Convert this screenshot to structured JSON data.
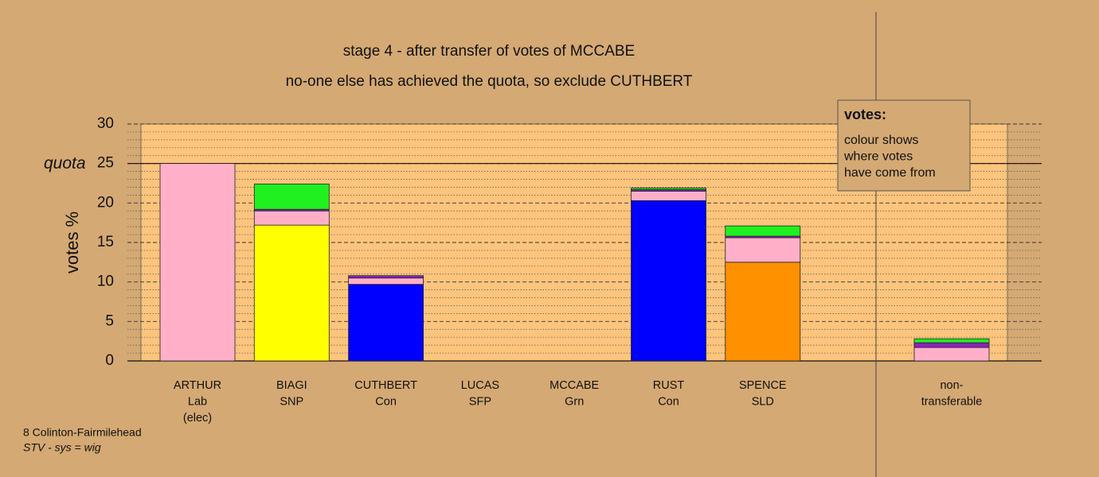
{
  "chart_data": {
    "type": "stacked-bar",
    "title": "stage 4 - after transfer of votes of MCCABE",
    "subtitle": "no-one else has achieved the quota, so exclude CUTHBERT",
    "y_label": "votes %",
    "quota_label": "quota",
    "quota": 25,
    "categories": [
      [
        "ARTHUR",
        "Lab",
        "(elec)"
      ],
      [
        "BIAGI",
        "SNP"
      ],
      [
        "CUTHBERT",
        "Con"
      ],
      [
        "LUCAS",
        "SFP"
      ],
      [
        "MCCABE",
        "Grn"
      ],
      [
        "RUST",
        "Con"
      ],
      [
        "SPENCE",
        "SLD"
      ],
      [
        "non-",
        "transferable"
      ]
    ],
    "series": [
      {
        "color": "#ffff00",
        "values": [
          0,
          17.2,
          0,
          0,
          0,
          0,
          0,
          0
        ]
      },
      {
        "color": "#0000ff",
        "values": [
          0,
          0,
          9.7,
          0,
          0,
          20.3,
          0,
          0
        ]
      },
      {
        "color": "#ff9000",
        "values": [
          0,
          0,
          0,
          0,
          0,
          0,
          12.5,
          0
        ]
      },
      {
        "color": "#ffb0c8",
        "values": [
          25,
          1.8,
          0.8,
          0,
          0,
          1.2,
          3.1,
          1.7
        ]
      },
      {
        "color": "#9020c0",
        "values": [
          0,
          0.2,
          0.3,
          0,
          0,
          0.2,
          0.2,
          0.6
        ]
      },
      {
        "color": "#20f020",
        "values": [
          0,
          3.2,
          0,
          0,
          0,
          0.2,
          1.3,
          0.5
        ]
      }
    ],
    "ylim": [
      0,
      30
    ],
    "yticks": [
      0,
      5,
      10,
      15,
      20,
      25,
      30
    ],
    "legend": {
      "title": "votes:",
      "lines": [
        "colour shows",
        "where votes",
        "have come from"
      ]
    },
    "footer": [
      "8 Colinton-Fairmilehead",
      "STV - sys = wig"
    ]
  }
}
